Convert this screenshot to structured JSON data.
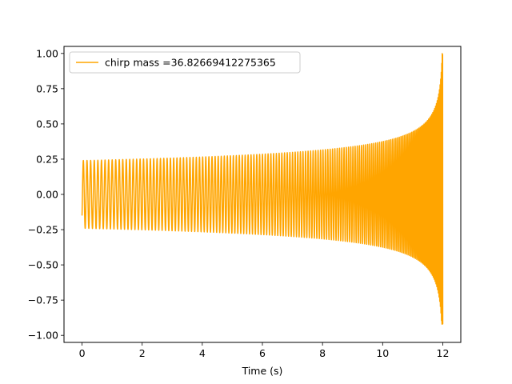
{
  "chart_data": {
    "type": "line",
    "title": "",
    "xlabel": "Time (s)",
    "ylabel": "",
    "xlim": [
      -0.6,
      12.6
    ],
    "ylim": [
      -1.05,
      1.05
    ],
    "x_ticks": [
      0,
      2,
      4,
      6,
      8,
      10,
      12
    ],
    "x_tick_labels": [
      "0",
      "2",
      "4",
      "6",
      "8",
      "10",
      "12"
    ],
    "y_ticks": [
      -1.0,
      -0.75,
      -0.5,
      -0.25,
      0.0,
      0.25,
      0.5,
      0.75,
      1.0
    ],
    "y_tick_labels": [
      "−1.00",
      "−0.75",
      "−0.50",
      "−0.25",
      "0.00",
      "0.25",
      "0.50",
      "0.75",
      "1.00"
    ],
    "grid": false,
    "legend_position": "top-left",
    "series": [
      {
        "name": "chirp mass =36.82669412275365",
        "color": "#ffa500",
        "t_start": 0.0,
        "t_end": 12.0,
        "start_value": -0.15,
        "initial_amplitude": 0.24,
        "peak_amplitude": 1.0,
        "min_value": -0.92
      }
    ]
  }
}
